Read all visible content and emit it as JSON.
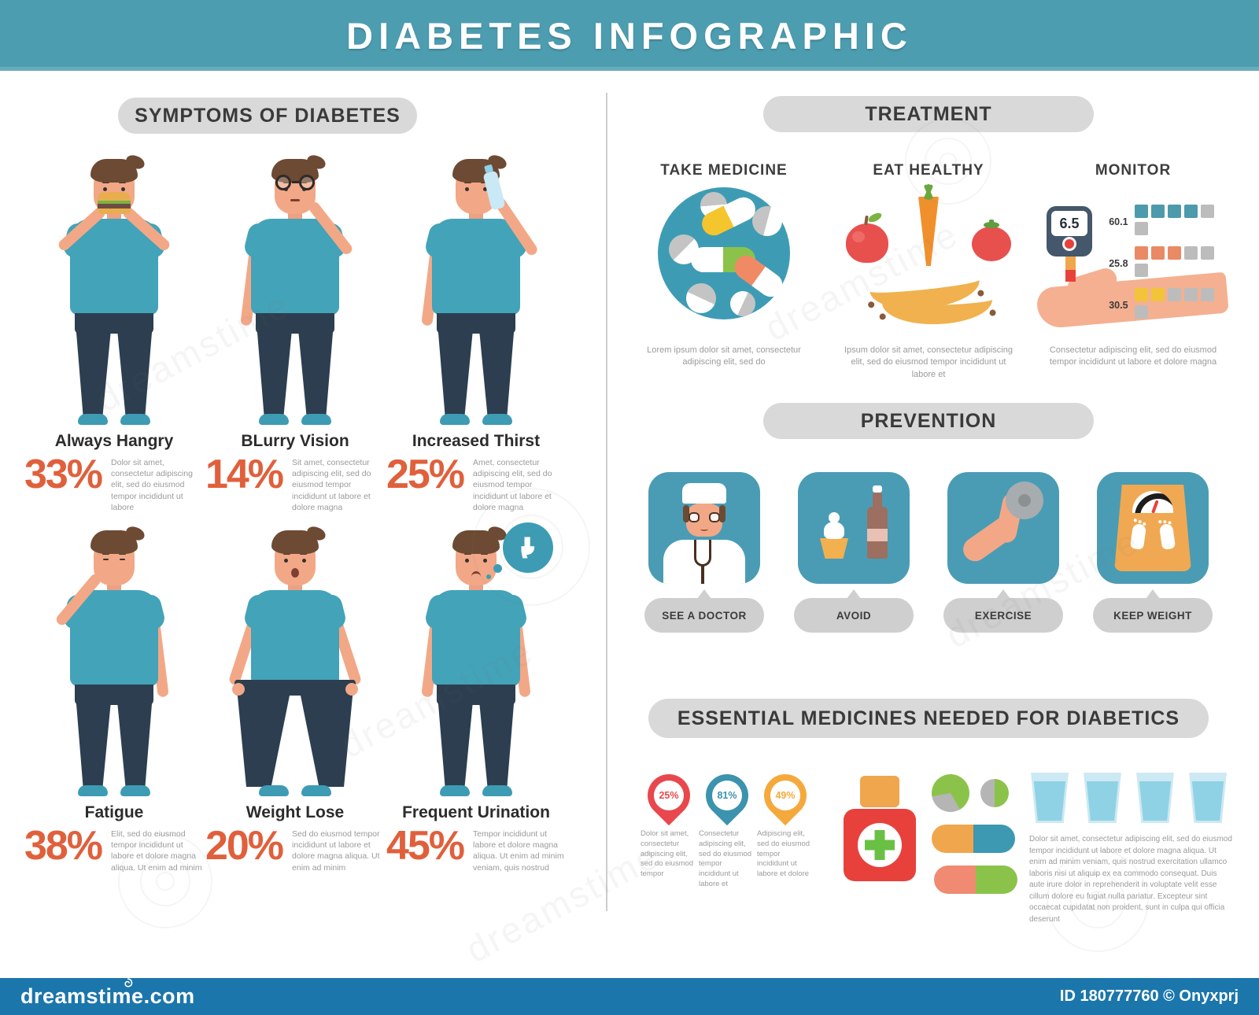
{
  "title": "DIABETES INFOGRAPHIC",
  "colors": {
    "banner": "#4d9db0",
    "footer": "#1b76ac",
    "accent_orange": "#e0603c",
    "tile_teal": "#4a9cb5",
    "pill_gray": "#d9d9d9"
  },
  "symptoms": {
    "header": "SYMPTOMS OF DIABETES",
    "items": [
      {
        "label": "Always Hangry",
        "percent": "33%",
        "desc": "Dolor sit amet, consectetur adipiscing elit, sed do eiusmod tempor incididunt ut labore"
      },
      {
        "label": "BLurry Vision",
        "percent": "14%",
        "desc": "Sit amet, consectetur adipiscing elit, sed do eiusmod tempor incididunt ut labore et dolore magna"
      },
      {
        "label": "Increased Thirst",
        "percent": "25%",
        "desc": "Amet, consectetur adipiscing elit, sed do eiusmod tempor incididunt ut labore et dolore magna"
      },
      {
        "label": "Fatigue",
        "percent": "38%",
        "desc": "Elit, sed do eiusmod tempor incididunt ut labore et dolore magna aliqua. Ut enim ad minim"
      },
      {
        "label": "Weight Lose",
        "percent": "20%",
        "desc": "Sed do eiusmod tempor incididunt ut labore et dolore magna aliqua. Ut enim ad minim"
      },
      {
        "label": "Frequent Urination",
        "percent": "45%",
        "desc": "Tempor incididunt ut labore et dolore magna aliqua. Ut enim ad minim veniam, quis nostrud"
      }
    ]
  },
  "treatment": {
    "header": "TREATMENT",
    "columns": [
      {
        "label": "TAKE MEDICINE",
        "desc": "Lorem ipsum dolor sit amet, consectetur adipiscing elit, sed do"
      },
      {
        "label": "EAT HEALTHY",
        "desc": "Ipsum dolor sit amet, consectetur adipiscing elit, sed do eiusmod tempor incididunt ut labore et"
      },
      {
        "label": "MONITOR",
        "desc": "Consectetur adipiscing elit, sed do eiusmod tempor incididunt ut labore et dolore magna"
      }
    ],
    "monitor": {
      "reading": "6.5",
      "rows": [
        {
          "label": "60.1",
          "filled": 4,
          "total": 6,
          "color": "#4d9aac"
        },
        {
          "label": "25.8",
          "filled": 3,
          "total": 6,
          "color": "#e98a64"
        },
        {
          "label": "30.5",
          "filled": 2,
          "total": 6,
          "color": "#f3c33a"
        }
      ]
    }
  },
  "prevention": {
    "header": "PREVENTION",
    "items": [
      {
        "label": "SEE A DOCTOR"
      },
      {
        "label": "AVOID"
      },
      {
        "label": "EXERCISE"
      },
      {
        "label": "KEEP WEIGHT"
      }
    ]
  },
  "medicines": {
    "header": "ESSENTIAL MEDICINES NEEDED FOR DIABETICS",
    "pins": [
      {
        "percent": "25%",
        "color": "#e8484d",
        "desc": "Dolor sit amet, consectetur adipiscing elit, sed do eiusmod tempor"
      },
      {
        "percent": "81%",
        "color": "#3c93ad",
        "desc": "Consectetur adipiscing elit, sed do eiusmod tempor incididunt ut labore et"
      },
      {
        "percent": "49%",
        "color": "#f5a93d",
        "desc": "Adipiscing elit, sed do eiusmod tempor incididunt ut labore et dolore"
      }
    ],
    "water_desc": "Dolor sit amet, consectetur adipiscing elit, sed do eiusmod tempor incididunt ut labore et dolore magna aliqua. Ut enim ad minim veniam, quis nostrud exercitation ullamco laboris nisi ut aliquip ex ea commodo consequat. Duis aute irure dolor in reprehenderit in voluptate velit esse cillum dolore eu fugiat nulla pariatur. Excepteur sint occaecat cupidatat non proident, sunt in culpa qui officia deserunt"
  },
  "footer": {
    "brand": "dreamstime.com",
    "credit": "ID 180777760 © Onyxprj"
  },
  "watermark": {
    "diagonal_text": "dreamstime"
  }
}
